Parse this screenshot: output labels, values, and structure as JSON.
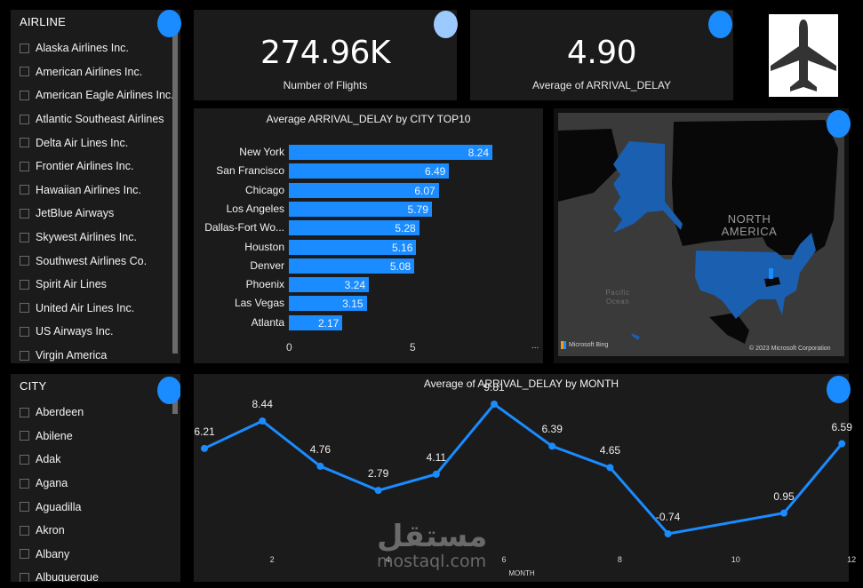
{
  "airline_slicer": {
    "title": "AIRLINE",
    "items": [
      "Alaska Airlines Inc.",
      "American Airlines Inc.",
      "American Eagle Airlines Inc.",
      "Atlantic Southeast Airlines",
      "Delta Air Lines Inc.",
      "Frontier Airlines Inc.",
      "Hawaiian Airlines Inc.",
      "JetBlue Airways",
      "Skywest Airlines Inc.",
      "Southwest Airlines Co.",
      "Spirit Air Lines",
      "United Air Lines Inc.",
      "US Airways Inc.",
      "Virgin America"
    ]
  },
  "city_slicer": {
    "title": "CITY",
    "items": [
      "Aberdeen",
      "Abilene",
      "Adak",
      "Agana",
      "Aguadilla",
      "Akron",
      "Albany",
      "Albuquerque"
    ]
  },
  "kpis": [
    {
      "value": "274.96K",
      "label": "Number of Flights"
    },
    {
      "value": "4.90",
      "label": "Average of ARRIVAL_DELAY"
    }
  ],
  "logo": {
    "icon": "airplane-icon"
  },
  "map": {
    "region_label_1": "NORTH",
    "region_label_2": "AMERICA",
    "ocean_label_1": "Pacific",
    "ocean_label_2": "Ocean",
    "bing_label": "Microsoft Bing",
    "copyright": "© 2023 Microsoft Corporation"
  },
  "colors": {
    "accent": "#1a8cff",
    "panel": "#1b1b1b",
    "background": "#000000"
  },
  "watermark": {
    "arabic": "مستقل",
    "latin": "mostaql.com"
  },
  "chart_data": [
    {
      "type": "bar",
      "title": "Average ARRIVAL_DELAY by CITY TOP10",
      "orientation": "horizontal",
      "categories": [
        "New York",
        "San Francisco",
        "Chicago",
        "Los Angeles",
        "Dallas-Fort Wo...",
        "Houston",
        "Denver",
        "Phoenix",
        "Las Vegas",
        "Atlanta"
      ],
      "values": [
        8.24,
        6.49,
        6.07,
        5.79,
        5.28,
        5.16,
        5.08,
        3.24,
        3.15,
        2.17
      ],
      "xlabel": "",
      "ylabel": "",
      "x_ticks": [
        "0",
        "5"
      ],
      "xlim": [
        0,
        8.24
      ],
      "more_options": "..."
    },
    {
      "type": "line",
      "title": "Average of ARRIVAL_DELAY by MONTH",
      "x": [
        1,
        2,
        3,
        4,
        5,
        6,
        7,
        8,
        9,
        10,
        11,
        12
      ],
      "values": [
        6.21,
        8.44,
        4.76,
        2.79,
        4.11,
        9.81,
        6.39,
        4.65,
        -0.74,
        null,
        0.95,
        6.59
      ],
      "labels": [
        "6.21",
        "8.44",
        "4.76",
        "2.79",
        "4.11",
        "9.81",
        "6.39",
        "4.65",
        "-0.74",
        "",
        "0.95",
        "6.59"
      ],
      "xlabel": "MONTH",
      "ylabel": "",
      "x_ticks": [
        "2",
        "4",
        "6",
        "8",
        "10",
        "12"
      ],
      "grid": false
    }
  ]
}
